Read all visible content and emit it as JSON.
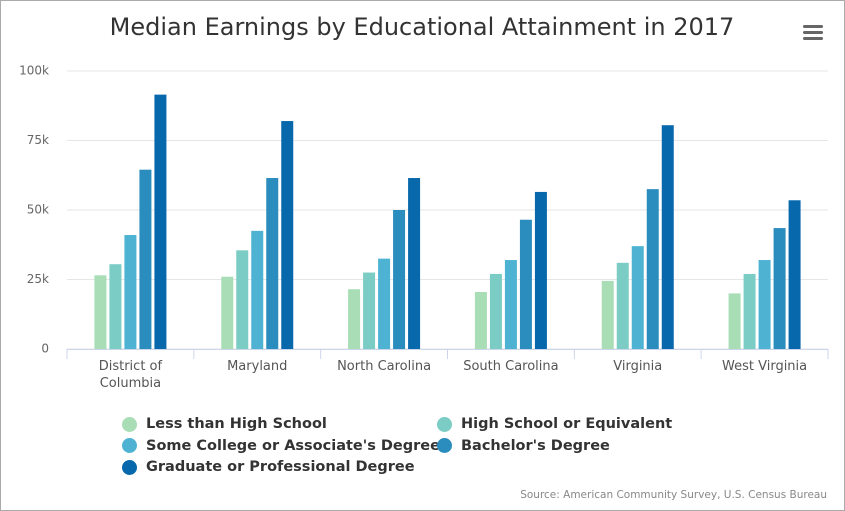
{
  "chart_data": {
    "type": "bar",
    "title": "Median Earnings by Educational Attainment in 2017",
    "categories": [
      "District of Columbia",
      "Maryland",
      "North Carolina",
      "South Carolina",
      "Virginia",
      "West Virginia"
    ],
    "series": [
      {
        "name": "Less than High School",
        "color": "#a8ddb5",
        "values": [
          26500,
          26000,
          21500,
          20500,
          24500,
          20000
        ]
      },
      {
        "name": "High School or Equivalent",
        "color": "#7bccc4",
        "values": [
          30500,
          35500,
          27500,
          27000,
          31000,
          27000
        ]
      },
      {
        "name": "Some College or Associate's Degree",
        "color": "#4eb3d3",
        "values": [
          41000,
          42500,
          32500,
          32000,
          37000,
          32000
        ]
      },
      {
        "name": "Bachelor's Degree",
        "color": "#2b8cbe",
        "values": [
          64500,
          61500,
          50000,
          46500,
          57500,
          43500
        ]
      },
      {
        "name": "Graduate or Professional Degree",
        "color": "#0868ac",
        "values": [
          91500,
          82000,
          61500,
          56500,
          80500,
          53500
        ]
      }
    ],
    "ylim": [
      0,
      100000
    ],
    "yticks": [
      0,
      {
        "value": 25000,
        "label": "25k"
      },
      {
        "value": 50000,
        "label": "50k"
      },
      {
        "value": 75000,
        "label": "75k"
      },
      {
        "value": 100000,
        "label": "100k"
      }
    ],
    "grid": true,
    "source": "Source: American Community Survey, U.S. Census Bureau"
  }
}
